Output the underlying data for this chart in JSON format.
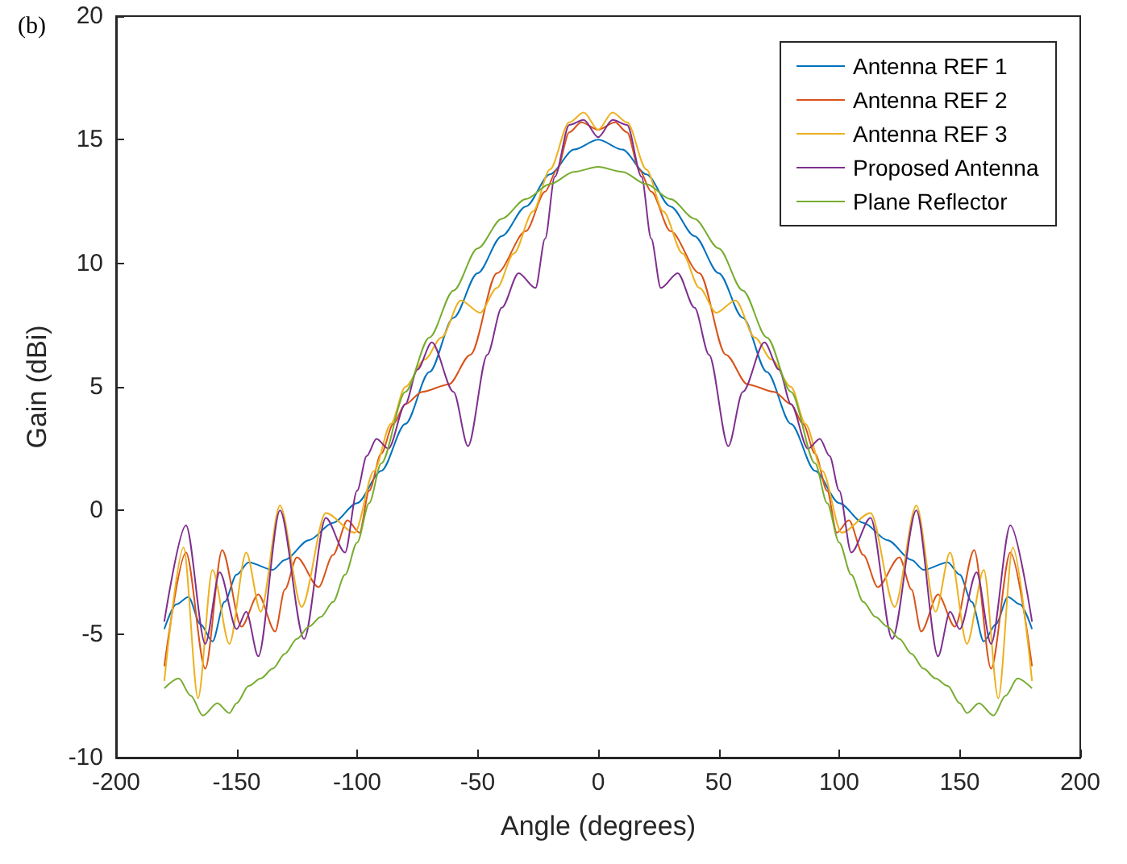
{
  "chart_data": {
    "type": "line",
    "title": "(b)",
    "xlabel": "Angle (degrees)",
    "ylabel": "Gain (dBi)",
    "xlim": [
      -200,
      200
    ],
    "xticks": [
      -200,
      -150,
      -100,
      -50,
      0,
      50,
      100,
      150,
      200
    ],
    "ylim": [
      -10,
      20
    ],
    "yticks": [
      -10,
      -5,
      0,
      5,
      10,
      15,
      20
    ],
    "grid": false,
    "legend": "top right",
    "marker": "none",
    "line_style": "solid",
    "series": [
      {
        "name": "Antenna REF 1",
        "color": "#0072bd",
        "x": [
          -180,
          -175,
          -170,
          -165,
          -160,
          -155,
          -150,
          -145,
          -135,
          -130,
          -120,
          -110,
          -100,
          -90,
          -80,
          -70,
          -60,
          -50,
          -40,
          -30,
          -20,
          -10,
          0,
          10,
          20,
          30,
          40,
          50,
          60,
          70,
          80,
          90,
          100,
          110,
          120,
          130,
          135,
          145,
          150,
          155,
          160,
          165,
          170,
          175,
          180
        ],
        "values": [
          -4.8,
          -3.8,
          -3.5,
          -4.6,
          -5.3,
          -3.7,
          -2.6,
          -2.1,
          -2.4,
          -2.0,
          -1.2,
          -0.5,
          0.3,
          1.6,
          3.5,
          5.6,
          7.8,
          9.6,
          11.1,
          12.3,
          13.6,
          14.6,
          15,
          14.6,
          13.6,
          12.3,
          11.1,
          9.6,
          7.8,
          5.6,
          3.5,
          1.6,
          0.3,
          -0.5,
          -1.2,
          -2.0,
          -2.4,
          -2.1,
          -2.6,
          -3.7,
          -5.3,
          -4.6,
          -3.5,
          -3.8,
          -4.8
        ]
      },
      {
        "name": "Antenna REF 2",
        "color": "#d95319",
        "x": [
          -180,
          -171,
          -163,
          -156,
          -148,
          -141,
          -134,
          -130,
          -125,
          -116,
          -110,
          -104,
          -99,
          -95,
          -90,
          -85,
          -80,
          -73,
          -62,
          -53,
          -42,
          -30,
          -22,
          -17,
          -12,
          -7,
          0,
          7,
          12,
          17,
          22,
          30,
          42,
          53,
          62,
          73,
          80,
          85,
          90,
          95,
          99,
          104,
          110,
          116,
          125,
          130,
          134,
          141,
          148,
          156,
          163,
          171,
          180
        ],
        "values": [
          -6.3,
          -1.7,
          -6.4,
          -1.6,
          -4.7,
          -3.4,
          -4.9,
          -3.2,
          -1.9,
          -3.1,
          -1.8,
          -0.4,
          -0.9,
          0.8,
          2.3,
          3.5,
          4.3,
          4.8,
          5.1,
          6.3,
          9.6,
          11.3,
          12.9,
          13.8,
          15.3,
          15.7,
          15.4,
          15.7,
          15.3,
          13.8,
          12.9,
          11.3,
          9.6,
          6.3,
          5.1,
          4.8,
          4.3,
          3.5,
          2.3,
          0.8,
          -0.9,
          -0.4,
          -1.8,
          -3.1,
          -1.9,
          -3.2,
          -4.9,
          -3.4,
          -4.7,
          -1.6,
          -6.4,
          -1.7,
          -6.3
        ]
      },
      {
        "name": "Antenna REF 3",
        "color": "#edb120",
        "x": [
          -180,
          -172,
          -166,
          -160,
          -153,
          -146,
          -140,
          -132,
          -123,
          -113,
          -101,
          -93,
          -86,
          -80,
          -72,
          -65,
          -57,
          -49,
          -42,
          -35,
          -27,
          -20,
          -12,
          -6,
          0,
          6,
          12,
          20,
          27,
          35,
          42,
          49,
          57,
          65,
          72,
          80,
          86,
          93,
          101,
          113,
          123,
          132,
          140,
          146,
          153,
          160,
          166,
          172,
          180
        ],
        "values": [
          -6.9,
          -1.5,
          -7.6,
          -2.4,
          -5.4,
          -1.7,
          -4.1,
          0.2,
          -3.9,
          -0.1,
          -0.9,
          1.6,
          3.5,
          5.0,
          6.1,
          7.0,
          8.5,
          8.0,
          9.0,
          10.4,
          12.1,
          13.8,
          15.7,
          16.1,
          15.4,
          16.1,
          15.7,
          13.8,
          12.1,
          10.4,
          9.0,
          8.0,
          8.5,
          7.0,
          6.1,
          5.0,
          3.5,
          1.6,
          -0.9,
          -0.1,
          -3.9,
          0.2,
          -4.1,
          -1.7,
          -5.4,
          -2.4,
          -7.6,
          -1.5,
          -6.9
        ]
      },
      {
        "name": "Proposed Antenna",
        "color": "#7e2f8e",
        "x": [
          -180,
          -171,
          -163,
          -157,
          -150,
          -146,
          -141,
          -132,
          -122,
          -113,
          -105,
          -100,
          -96,
          -92,
          -87,
          -80,
          -75,
          -69,
          -60,
          -54,
          -46,
          -40,
          -33,
          -26,
          -22,
          -18,
          -12,
          -6,
          0,
          6,
          12,
          18,
          22,
          26,
          33,
          40,
          46,
          54,
          60,
          69,
          75,
          80,
          87,
          92,
          96,
          100,
          105,
          113,
          122,
          132,
          141,
          146,
          150,
          157,
          163,
          171,
          180
        ],
        "values": [
          -4.5,
          -0.6,
          -5.4,
          -2.5,
          -4.8,
          -4.1,
          -5.9,
          0.0,
          -5.2,
          -0.3,
          -1.7,
          0.8,
          2.2,
          2.9,
          2.5,
          4.3,
          5.7,
          6.8,
          4.8,
          2.6,
          6.3,
          8.2,
          9.6,
          9.0,
          11.0,
          13.5,
          15.6,
          15.8,
          15.1,
          15.8,
          15.6,
          13.5,
          11.0,
          9.0,
          9.6,
          8.2,
          6.3,
          2.6,
          4.8,
          6.8,
          5.7,
          4.3,
          2.5,
          2.9,
          2.2,
          0.8,
          -1.7,
          -0.3,
          -5.2,
          0.0,
          -5.9,
          -4.1,
          -4.8,
          -2.5,
          -5.4,
          -0.6,
          -4.5
        ]
      },
      {
        "name": "Plane Reflector",
        "color": "#77ac30",
        "x": [
          -180,
          -174,
          -169,
          -164,
          -158,
          -153,
          -150,
          -145,
          -140,
          -135,
          -130,
          -125,
          -120,
          -115,
          -110,
          -105,
          -100,
          -95,
          -90,
          -80,
          -70,
          -60,
          -50,
          -40,
          -30,
          -20,
          -10,
          0,
          10,
          20,
          30,
          40,
          50,
          60,
          70,
          80,
          90,
          95,
          100,
          105,
          110,
          115,
          120,
          125,
          130,
          135,
          140,
          145,
          150,
          153,
          158,
          164,
          169,
          174,
          180
        ],
        "values": [
          -7.2,
          -6.8,
          -7.5,
          -8.3,
          -7.8,
          -8.2,
          -7.8,
          -7.1,
          -6.8,
          -6.4,
          -5.8,
          -5.2,
          -4.7,
          -4.3,
          -3.7,
          -2.6,
          -1.3,
          0.3,
          1.9,
          4.8,
          7.0,
          8.9,
          10.6,
          11.8,
          12.6,
          13.2,
          13.7,
          13.9,
          13.7,
          13.2,
          12.6,
          11.8,
          10.6,
          8.9,
          7.0,
          4.8,
          1.9,
          0.3,
          -1.3,
          -2.6,
          -3.7,
          -4.3,
          -4.7,
          -5.2,
          -5.8,
          -6.4,
          -6.8,
          -7.1,
          -7.8,
          -8.2,
          -7.8,
          -8.3,
          -7.5,
          -6.8,
          -7.2
        ]
      }
    ]
  }
}
